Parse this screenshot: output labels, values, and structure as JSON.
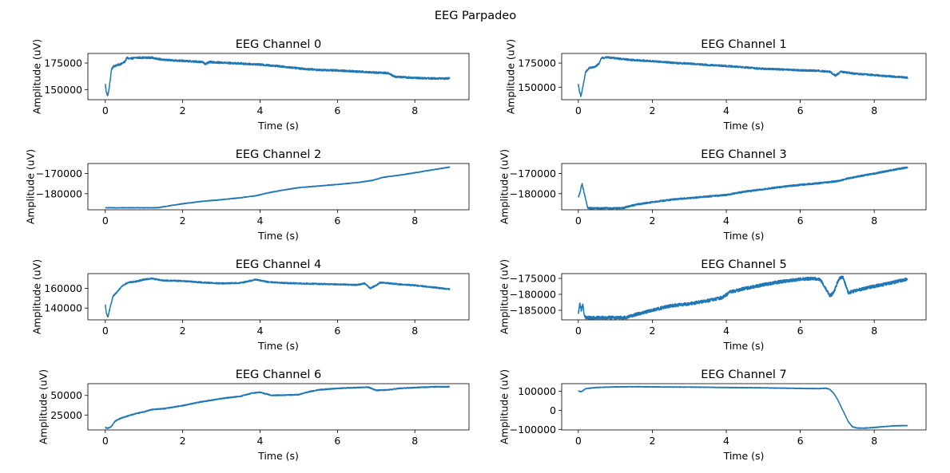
{
  "figure": {
    "suptitle": "EEG Parpadeo"
  },
  "colors": {
    "line": "#1f77b4",
    "axes": "#000000",
    "background": "#ffffff"
  },
  "chart_data": [
    {
      "type": "line",
      "title": "EEG Channel 0",
      "xlabel": "Time (s)",
      "ylabel": "Amplitude (uV)",
      "xlim": [
        -0.45,
        9.4
      ],
      "ylim": [
        140500,
        184000
      ],
      "xticks": [
        0,
        2,
        4,
        6,
        8
      ],
      "xtick_labels": [
        "0",
        "2",
        "4",
        "6",
        "8"
      ],
      "yticks": [
        150000,
        175000
      ],
      "ytick_labels": [
        "150000",
        "175000"
      ],
      "grid": false,
      "noise": 900,
      "series": [
        {
          "x": [
            0,
            0.02,
            0.06,
            0.1,
            0.16,
            0.22,
            0.3,
            0.4,
            0.5,
            0.56,
            0.62,
            0.8,
            1.0,
            1.2,
            1.5,
            2.0,
            2.5,
            2.6,
            2.7,
            2.9,
            3.5,
            4.0,
            4.5,
            5.0,
            5.5,
            6.0,
            6.5,
            7.0,
            7.3,
            7.5,
            7.8,
            8.0,
            8.5,
            8.9
          ],
          "y": [
            155000,
            149000,
            144000,
            151000,
            169000,
            172000,
            173000,
            174000,
            176000,
            180000,
            179000,
            180000,
            180000,
            180000,
            178000,
            177000,
            176000,
            174000,
            176000,
            175500,
            174500,
            173500,
            172000,
            170000,
            168500,
            168000,
            167000,
            166000,
            165500,
            162000,
            161500,
            161000,
            160500,
            160500
          ]
        }
      ]
    },
    {
      "type": "line",
      "title": "EEG Channel 1",
      "xlabel": "Time (s)",
      "ylabel": "Amplitude (uV)",
      "xlim": [
        -0.45,
        9.4
      ],
      "ylim": [
        137000,
        185000
      ],
      "xticks": [
        0,
        2,
        4,
        6,
        8
      ],
      "xtick_labels": [
        "0",
        "2",
        "4",
        "6",
        "8"
      ],
      "yticks": [
        150000,
        175000
      ],
      "ytick_labels": [
        "150000",
        "175000"
      ],
      "grid": false,
      "noise": 900,
      "series": [
        {
          "x": [
            0,
            0.03,
            0.07,
            0.12,
            0.2,
            0.3,
            0.45,
            0.55,
            0.62,
            0.8,
            1.0,
            1.5,
            2.0,
            2.5,
            2.7,
            3.0,
            3.5,
            4.0,
            4.5,
            5.0,
            5.5,
            6.0,
            6.5,
            6.8,
            6.95,
            7.1,
            7.5,
            8.0,
            8.5,
            8.9
          ],
          "y": [
            153000,
            146000,
            140000,
            150000,
            166000,
            170000,
            171000,
            174000,
            180000,
            181000,
            180000,
            178000,
            177000,
            175500,
            175000,
            174500,
            173000,
            172000,
            170500,
            169000,
            168500,
            167500,
            167000,
            166000,
            162000,
            166000,
            164000,
            162500,
            161000,
            160000
          ]
        }
      ]
    },
    {
      "type": "line",
      "title": "EEG Channel 2",
      "xlabel": "Time (s)",
      "ylabel": "Amplitude (uV)",
      "xlim": [
        -0.45,
        9.4
      ],
      "ylim": [
        -188000,
        -165000
      ],
      "xticks": [
        0,
        2,
        4,
        6,
        8
      ],
      "xtick_labels": [
        "0",
        "2",
        "4",
        "6",
        "8"
      ],
      "yticks": [
        -180000,
        -170000
      ],
      "ytick_labels": [
        "−180000",
        "−170000"
      ],
      "grid": false,
      "noise": 150,
      "series": [
        {
          "x": [
            0,
            1.35,
            1.6,
            2.0,
            2.5,
            3.0,
            3.5,
            3.9,
            4.2,
            4.6,
            5.0,
            5.5,
            6.0,
            6.5,
            6.9,
            7.2,
            7.6,
            8.0,
            8.5,
            8.9
          ],
          "y": [
            -187000,
            -187000,
            -186200,
            -185000,
            -183800,
            -183000,
            -182000,
            -181000,
            -179600,
            -178200,
            -177000,
            -176200,
            -175400,
            -174500,
            -173400,
            -171800,
            -170800,
            -169600,
            -168000,
            -166800
          ]
        }
      ]
    },
    {
      "type": "line",
      "title": "EEG Channel 3",
      "xlabel": "Time (s)",
      "ylabel": "Amplitude (uV)",
      "xlim": [
        -0.45,
        9.4
      ],
      "ylim": [
        -188000,
        -165000
      ],
      "xticks": [
        0,
        2,
        4,
        6,
        8
      ],
      "xtick_labels": [
        "0",
        "2",
        "4",
        "6",
        "8"
      ],
      "yticks": [
        -180000,
        -170000
      ],
      "ytick_labels": [
        "−180000",
        "−170000"
      ],
      "grid": false,
      "noise": 400,
      "series": [
        {
          "x": [
            0,
            0.05,
            0.1,
            0.15,
            0.2,
            0.25,
            0.3,
            1.2,
            1.3,
            1.6,
            2.0,
            2.5,
            3.0,
            3.5,
            4.0,
            4.5,
            5.0,
            5.5,
            6.0,
            6.5,
            7.0,
            7.3,
            7.6,
            8.0,
            8.5,
            8.9
          ],
          "y": [
            -182000,
            -179000,
            -175000,
            -179000,
            -183000,
            -187000,
            -187200,
            -187200,
            -186600,
            -185300,
            -184200,
            -183000,
            -182200,
            -181400,
            -180600,
            -179000,
            -177800,
            -176600,
            -175600,
            -174800,
            -173800,
            -172400,
            -171300,
            -170000,
            -168200,
            -166900
          ]
        }
      ]
    },
    {
      "type": "line",
      "title": "EEG Channel 4",
      "xlabel": "Time (s)",
      "ylabel": "Amplitude (uV)",
      "xlim": [
        -0.45,
        9.4
      ],
      "ylim": [
        128000,
        175000
      ],
      "xticks": [
        0,
        2,
        4,
        6,
        8
      ],
      "xtick_labels": [
        "0",
        "2",
        "4",
        "6",
        "8"
      ],
      "yticks": [
        140000,
        160000
      ],
      "ytick_labels": [
        "140000",
        "160000"
      ],
      "grid": false,
      "noise": 700,
      "series": [
        {
          "x": [
            0,
            0.03,
            0.07,
            0.12,
            0.2,
            0.3,
            0.45,
            0.6,
            0.8,
            1.0,
            1.2,
            1.5,
            2.0,
            2.5,
            3.0,
            3.5,
            3.9,
            4.0,
            4.2,
            4.6,
            5.0,
            5.5,
            6.0,
            6.5,
            6.7,
            6.85,
            7.0,
            7.1,
            7.5,
            8.0,
            8.5,
            8.9
          ],
          "y": [
            143000,
            134000,
            131000,
            140000,
            152000,
            156000,
            163000,
            166000,
            167000,
            169000,
            170000,
            168000,
            167500,
            166000,
            165000,
            165500,
            169000,
            168000,
            166500,
            165500,
            165000,
            164500,
            164000,
            163500,
            165000,
            160000,
            163000,
            166000,
            164500,
            163000,
            161000,
            159000
          ]
        }
      ]
    },
    {
      "type": "line",
      "title": "EEG Channel 5",
      "xlabel": "Time (s)",
      "ylabel": "Amplitude (uV)",
      "xlim": [
        -0.45,
        9.4
      ],
      "ylim": [
        -188000,
        -173500
      ],
      "xticks": [
        0,
        2,
        4,
        6,
        8
      ],
      "xtick_labels": [
        "0",
        "2",
        "4",
        "6",
        "8"
      ],
      "yticks": [
        -185000,
        -180000,
        -175000
      ],
      "ytick_labels": [
        "−185000",
        "−180000",
        "−175000"
      ],
      "grid": false,
      "noise": 500,
      "series": [
        {
          "x": [
            0,
            0.04,
            0.08,
            0.12,
            0.16,
            0.2,
            1.3,
            1.5,
            2.0,
            2.5,
            3.0,
            3.5,
            3.9,
            4.1,
            4.5,
            5.0,
            5.5,
            6.0,
            6.4,
            6.55,
            6.7,
            6.8,
            6.9,
            7.05,
            7.15,
            7.3,
            7.6,
            8.0,
            8.5,
            8.9
          ],
          "y": [
            -186000,
            -183000,
            -185000,
            -183000,
            -186500,
            -187300,
            -187300,
            -186500,
            -185000,
            -183600,
            -183000,
            -182000,
            -181000,
            -179300,
            -178200,
            -177000,
            -176000,
            -175300,
            -175000,
            -175500,
            -178500,
            -180500,
            -179500,
            -175000,
            -174500,
            -179500,
            -178500,
            -177500,
            -176300,
            -175200
          ]
        }
      ]
    },
    {
      "type": "line",
      "title": "EEG Channel 6",
      "xlabel": "Time (s)",
      "ylabel": "Amplitude (uV)",
      "xlim": [
        -0.45,
        9.4
      ],
      "ylim": [
        6000,
        65000
      ],
      "xticks": [
        0,
        2,
        4,
        6,
        8
      ],
      "xtick_labels": [
        "0",
        "2",
        "4",
        "6",
        "8"
      ],
      "yticks": [
        25000,
        50000
      ],
      "ytick_labels": [
        "25000",
        "50000"
      ],
      "grid": false,
      "noise": 600,
      "series": [
        {
          "x": [
            0,
            0.05,
            0.15,
            0.25,
            0.4,
            0.6,
            0.8,
            1.0,
            1.2,
            1.5,
            2.0,
            2.5,
            3.0,
            3.5,
            3.8,
            4.0,
            4.3,
            4.7,
            5.0,
            5.2,
            5.5,
            6.0,
            6.5,
            6.8,
            7.0,
            7.3,
            7.6,
            8.0,
            8.5,
            8.9
          ],
          "y": [
            9000,
            8000,
            10000,
            17000,
            21000,
            24000,
            27000,
            29000,
            32000,
            33000,
            37000,
            42000,
            46000,
            49000,
            53000,
            54000,
            50000,
            50500,
            51000,
            54000,
            57000,
            59000,
            60000,
            60500,
            56500,
            57000,
            59000,
            60000,
            61000,
            61000
          ]
        }
      ]
    },
    {
      "type": "line",
      "title": "EEG Channel 7",
      "xlabel": "Time (s)",
      "ylabel": "Amplitude (uV)",
      "xlim": [
        -0.45,
        9.4
      ],
      "ylim": [
        -103000,
        140000
      ],
      "xticks": [
        0,
        2,
        4,
        6,
        8
      ],
      "xtick_labels": [
        "0",
        "2",
        "4",
        "6",
        "8"
      ],
      "yticks": [
        -100000,
        0,
        100000
      ],
      "ytick_labels": [
        "−100000",
        "0",
        "100000"
      ],
      "grid": false,
      "noise": 1500,
      "series": [
        {
          "x": [
            0,
            0.05,
            0.1,
            0.2,
            0.5,
            1.0,
            1.5,
            2.0,
            3.0,
            4.0,
            5.0,
            6.0,
            6.5,
            6.7,
            6.8,
            6.9,
            7.0,
            7.1,
            7.2,
            7.3,
            7.4,
            7.5,
            7.7,
            8.0,
            8.5,
            8.9
          ],
          "y": [
            102000,
            98000,
            100000,
            114000,
            120000,
            123000,
            124000,
            123000,
            122000,
            120000,
            118000,
            115000,
            114000,
            116000,
            110000,
            90000,
            60000,
            20000,
            -20000,
            -60000,
            -85000,
            -92000,
            -94000,
            -90000,
            -82000,
            -80000
          ]
        }
      ]
    }
  ]
}
